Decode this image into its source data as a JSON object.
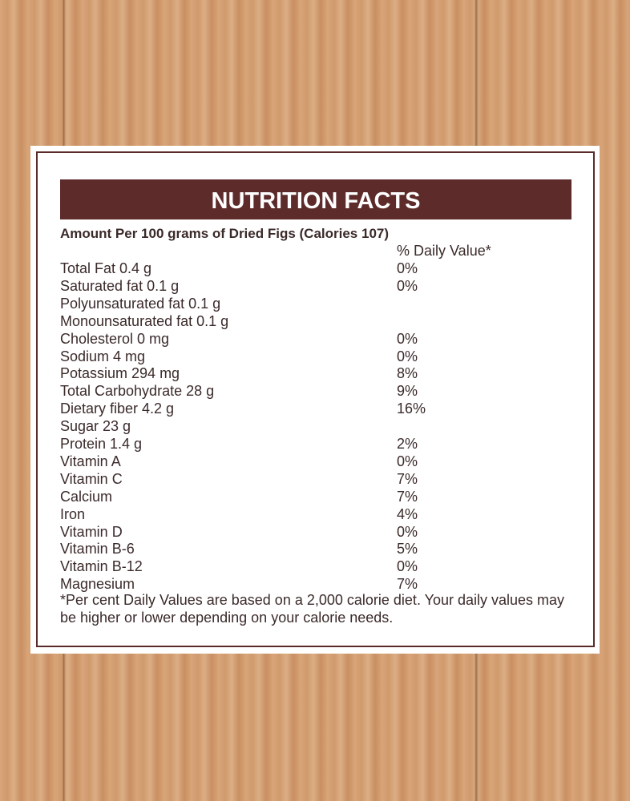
{
  "label": {
    "title": "NUTRITION FACTS",
    "subtitle": "Amount Per 100 grams of Dried Figs (Calories 107)",
    "dv_header": "% Daily Value*",
    "rows": [
      {
        "nutrient": "Total Fat 0.4 g",
        "dv": "0%"
      },
      {
        "nutrient": "Saturated fat 0.1 g",
        "dv": "0%"
      },
      {
        "nutrient": "Polyunsaturated fat 0.1 g"
      },
      {
        "nutrient": "Monounsaturated fat 0.1 g"
      },
      {
        "nutrient": "Cholesterol 0 mg",
        "dv": "0%"
      },
      {
        "nutrient": "Sodium 4 mg",
        "dv": "0%"
      },
      {
        "nutrient": "Potassium 294 mg",
        "dv": "8%"
      },
      {
        "nutrient": "Total Carbohydrate 28 g",
        "dv": "9%"
      },
      {
        "nutrient": "Dietary fiber 4.2 g",
        "dv": "16%"
      },
      {
        "nutrient": "Sugar 23 g"
      },
      {
        "nutrient": "Protein 1.4 g",
        "dv": "2%"
      },
      {
        "nutrient": "Vitamin A",
        "dv": "0%"
      },
      {
        "nutrient": "Vitamin C",
        "dv": "7%"
      },
      {
        "nutrient": "Calcium",
        "dv": "7%"
      },
      {
        "nutrient": "Iron",
        "dv": "4%"
      },
      {
        "nutrient": "Vitamin D",
        "dv": "0%"
      },
      {
        "nutrient": "Vitamin B-6",
        "dv": "5%"
      },
      {
        "nutrient": "Vitamin B-12",
        "dv": "0%"
      },
      {
        "nutrient": "Magnesium",
        "dv": "7%"
      }
    ],
    "footnote": "*Per cent Daily Values are based on a 2,000 calorie diet. Your daily values may be higher or lower depending on your calorie needs."
  }
}
